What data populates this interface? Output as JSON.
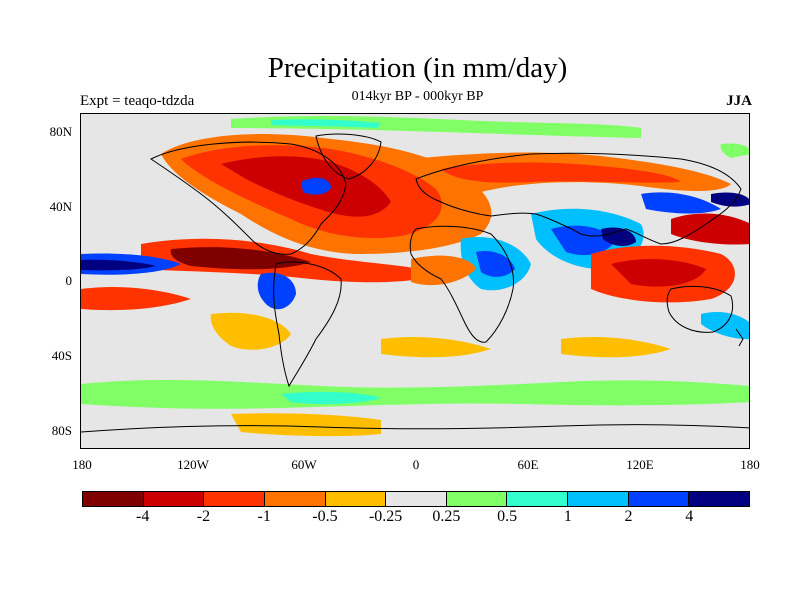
{
  "map": {
    "title": "Precipitation (in mm/day)",
    "subtitle": "014kyr BP - 000kyr BP",
    "experiment_label": "Expt = teaqo-tdzda",
    "season_label": "JJA",
    "lat_ticks": [
      "80N",
      "40N",
      "0",
      "40S",
      "80S"
    ],
    "lon_ticks": [
      "180",
      "120W",
      "60W",
      "0",
      "60E",
      "120E",
      "180"
    ],
    "colorbar": {
      "colors": [
        "#800000",
        "#cc0000",
        "#ff3300",
        "#ff7300",
        "#ffbf00",
        "#e6e6e6",
        "#80ff66",
        "#33ffcc",
        "#00bfff",
        "#0040ff",
        "#000080"
      ],
      "labels": [
        "-4",
        "-2",
        "-1",
        "-0.5",
        "-0.25",
        "0.25",
        "0.5",
        "1",
        "2",
        "4"
      ]
    }
  }
}
